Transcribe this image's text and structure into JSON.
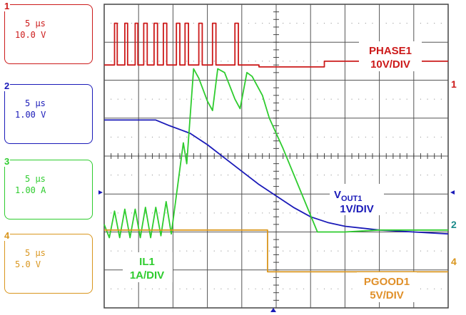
{
  "channels": [
    {
      "num": "1",
      "time": "5 µs",
      "scale": "10.0 V",
      "color": "#cc1a1a"
    },
    {
      "num": "2",
      "time": "5 µs",
      "scale": "1.00 V",
      "color": "#1a1ab8"
    },
    {
      "num": "3",
      "time": "5 µs",
      "scale": "1.00 A",
      "color": "#2ecc2e"
    },
    {
      "num": "4",
      "time": "5 µs",
      "scale": "5.0 V",
      "color": "#d9961e"
    }
  ],
  "labels": {
    "phase_name": "PHASE1",
    "phase_div": "10V/DIV",
    "vout_v": "V",
    "vout_sub": "OUT1",
    "vout_div": "1V/DIV",
    "il_name": "IL1",
    "il_div": "1A/DIV",
    "pgood_name": "PGOOD1",
    "pgood_div": "5V/DIV"
  },
  "chart_data": {
    "type": "line",
    "grid": true,
    "x_divisions": 10,
    "y_divisions": 8,
    "xlim": [
      0,
      10
    ],
    "ylim": [
      0,
      8
    ],
    "series": [
      {
        "name": "PHASE1",
        "color": "#cc1a1a",
        "marker_label": "1",
        "points": [
          [
            0,
            6.4
          ],
          [
            0.3,
            6.4
          ],
          [
            0.3,
            7.5
          ],
          [
            0.38,
            7.5
          ],
          [
            0.38,
            6.4
          ],
          [
            0.6,
            6.4
          ],
          [
            0.6,
            7.5
          ],
          [
            0.68,
            7.5
          ],
          [
            0.68,
            6.4
          ],
          [
            0.9,
            6.4
          ],
          [
            0.9,
            7.5
          ],
          [
            0.98,
            7.5
          ],
          [
            0.98,
            6.4
          ],
          [
            1.15,
            6.4
          ],
          [
            1.15,
            7.5
          ],
          [
            1.25,
            7.5
          ],
          [
            1.25,
            6.4
          ],
          [
            1.45,
            6.4
          ],
          [
            1.45,
            7.5
          ],
          [
            1.55,
            7.5
          ],
          [
            1.55,
            6.4
          ],
          [
            1.72,
            6.4
          ],
          [
            1.72,
            7.5
          ],
          [
            1.82,
            7.5
          ],
          [
            1.82,
            6.4
          ],
          [
            2.1,
            6.4
          ],
          [
            2.1,
            7.5
          ],
          [
            2.2,
            7.5
          ],
          [
            2.2,
            6.4
          ],
          [
            2.35,
            6.4
          ],
          [
            2.35,
            7.5
          ],
          [
            2.45,
            7.5
          ],
          [
            2.45,
            6.4
          ],
          [
            2.75,
            6.4
          ],
          [
            2.75,
            7.5
          ],
          [
            2.85,
            7.5
          ],
          [
            2.85,
            6.4
          ],
          [
            3.15,
            6.4
          ],
          [
            3.15,
            7.5
          ],
          [
            3.25,
            7.5
          ],
          [
            3.25,
            6.4
          ],
          [
            3.8,
            6.4
          ],
          [
            3.8,
            7.5
          ],
          [
            3.9,
            7.5
          ],
          [
            3.9,
            6.4
          ],
          [
            4.5,
            6.4
          ],
          [
            4.5,
            6.35
          ],
          [
            6.4,
            6.35
          ],
          [
            6.4,
            6.5
          ],
          [
            10,
            6.5
          ]
        ]
      },
      {
        "name": "VOUT1",
        "color": "#1a1ab8",
        "marker_label": "",
        "points": [
          [
            0,
            4.95
          ],
          [
            1.5,
            4.95
          ],
          [
            1.9,
            4.8
          ],
          [
            2.5,
            4.6
          ],
          [
            3.0,
            4.3
          ],
          [
            3.5,
            3.95
          ],
          [
            4.0,
            3.6
          ],
          [
            4.5,
            3.25
          ],
          [
            5.0,
            2.95
          ],
          [
            5.5,
            2.65
          ],
          [
            6.0,
            2.4
          ],
          [
            6.5,
            2.25
          ],
          [
            7.0,
            2.15
          ],
          [
            8.0,
            2.05
          ],
          [
            9.0,
            2.0
          ],
          [
            10,
            1.95
          ]
        ]
      },
      {
        "name": "IL1",
        "color": "#2ecc2e",
        "marker_label": "",
        "points": [
          [
            0,
            2.2
          ],
          [
            0.15,
            1.85
          ],
          [
            0.3,
            2.55
          ],
          [
            0.45,
            1.85
          ],
          [
            0.6,
            2.6
          ],
          [
            0.75,
            1.85
          ],
          [
            0.9,
            2.6
          ],
          [
            1.05,
            1.85
          ],
          [
            1.2,
            2.65
          ],
          [
            1.35,
            1.85
          ],
          [
            1.5,
            2.65
          ],
          [
            1.65,
            1.9
          ],
          [
            1.8,
            2.8
          ],
          [
            1.95,
            1.95
          ],
          [
            2.3,
            4.35
          ],
          [
            2.4,
            3.8
          ],
          [
            2.6,
            6.3
          ],
          [
            2.75,
            6.05
          ],
          [
            3.0,
            5.45
          ],
          [
            3.15,
            5.2
          ],
          [
            3.3,
            6.3
          ],
          [
            3.5,
            6.2
          ],
          [
            3.8,
            5.5
          ],
          [
            3.95,
            5.25
          ],
          [
            4.15,
            6.2
          ],
          [
            4.3,
            6.1
          ],
          [
            4.6,
            5.6
          ],
          [
            4.8,
            5.0
          ],
          [
            5.2,
            4.2
          ],
          [
            6.2,
            2.0
          ],
          [
            7.0,
            2.0
          ],
          [
            8.0,
            2.05
          ],
          [
            9.0,
            2.05
          ],
          [
            10,
            2.05
          ]
        ]
      },
      {
        "name": "PGOOD1",
        "color": "#d9961e",
        "marker_label": "",
        "points": [
          [
            0,
            2.05
          ],
          [
            4.75,
            2.05
          ],
          [
            4.75,
            0.95
          ],
          [
            10,
            0.95
          ]
        ]
      }
    ]
  }
}
